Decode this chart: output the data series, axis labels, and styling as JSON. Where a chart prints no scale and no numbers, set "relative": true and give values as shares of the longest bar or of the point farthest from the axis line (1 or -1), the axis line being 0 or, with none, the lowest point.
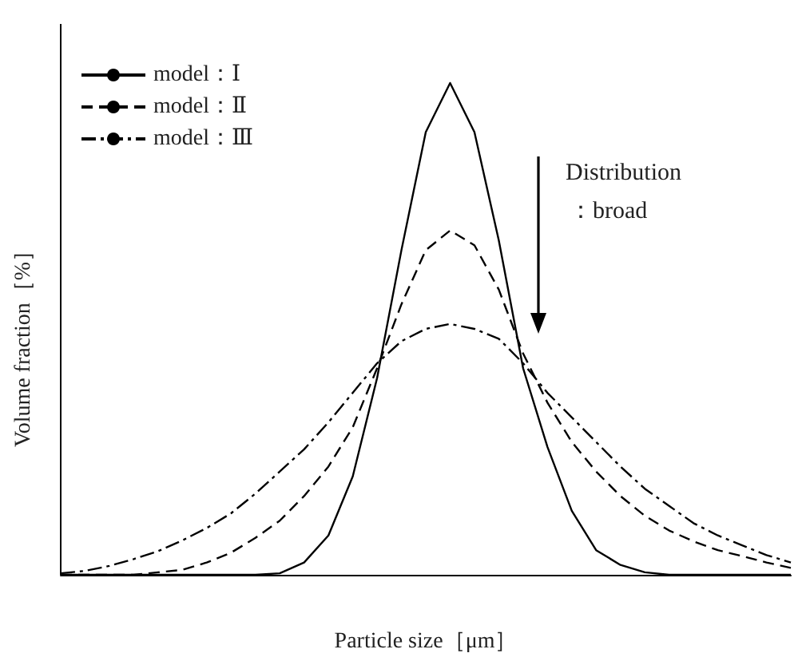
{
  "chart_data": {
    "type": "line",
    "relative": true,
    "xlabel": "Particle size［μm］",
    "ylabel": "Volume fraction［%］",
    "annotations": [
      "Distribution",
      "：broad"
    ],
    "categories": [
      null,
      null,
      null,
      null,
      null,
      null,
      null,
      null,
      null,
      null,
      null,
      null,
      null,
      null,
      null,
      null,
      null,
      null,
      null,
      null,
      null,
      null,
      null,
      null,
      null,
      null,
      null,
      null,
      null,
      null,
      null
    ],
    "series": [
      {
        "name": "model：Ⅰ",
        "color": "#000000",
        "line_style": "solid",
        "values": [
          0,
          0,
          0,
          0,
          0,
          0,
          0,
          0,
          0,
          0.003,
          0.025,
          0.08,
          0.2,
          0.4,
          0.66,
          0.9,
          1,
          0.9,
          0.68,
          0.42,
          0.26,
          0.13,
          0.05,
          0.02,
          0.005,
          0,
          0,
          0,
          0,
          0,
          0
        ]
      },
      {
        "name": "model：Ⅱ",
        "color": "#000000",
        "line_style": "dashed",
        "values": [
          0,
          0,
          0,
          0,
          0.005,
          0.01,
          0.025,
          0.045,
          0.075,
          0.11,
          0.16,
          0.22,
          0.3,
          0.42,
          0.55,
          0.66,
          0.7,
          0.67,
          0.58,
          0.45,
          0.35,
          0.27,
          0.21,
          0.16,
          0.12,
          0.09,
          0.068,
          0.05,
          0.038,
          0.025,
          0.014
        ]
      },
      {
        "name": "model：Ⅲ",
        "color": "#000000",
        "line_style": "dashdot",
        "values": [
          0.003,
          0.008,
          0.018,
          0.032,
          0.048,
          0.07,
          0.095,
          0.125,
          0.165,
          0.21,
          0.255,
          0.31,
          0.37,
          0.43,
          0.475,
          0.5,
          0.51,
          0.5,
          0.48,
          0.43,
          0.37,
          0.32,
          0.27,
          0.22,
          0.175,
          0.14,
          0.105,
          0.08,
          0.06,
          0.04,
          0.025
        ]
      }
    ],
    "legend": "top left",
    "grid": false,
    "marker": "none"
  }
}
